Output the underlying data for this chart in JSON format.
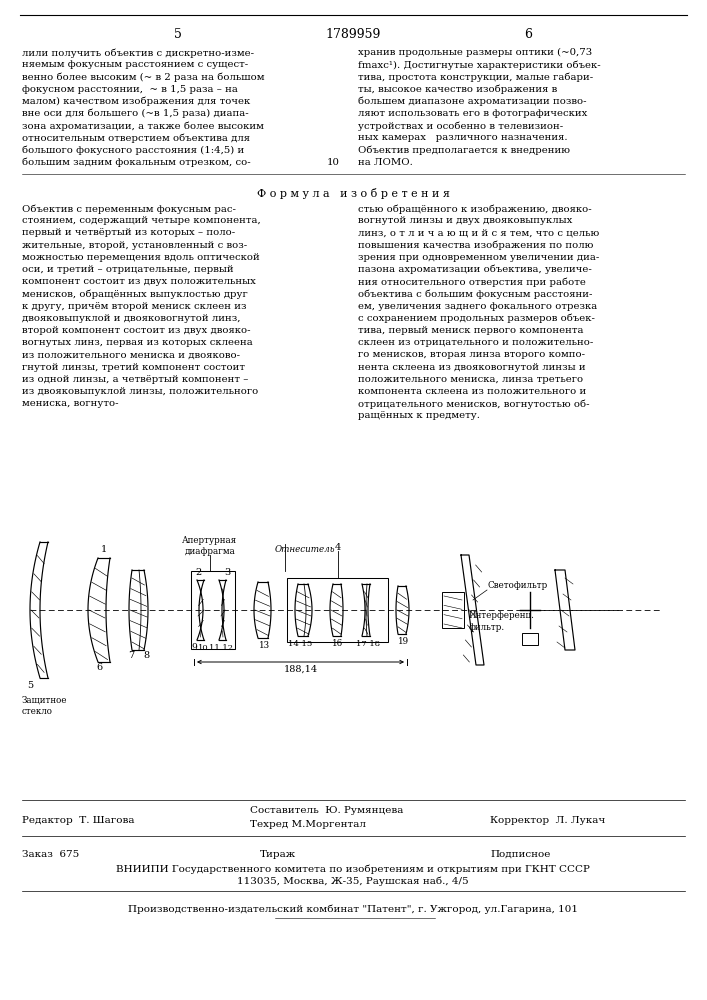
{
  "page_number_left": "5",
  "patent_number": "1789959",
  "page_number_right": "6",
  "background_color": "#ffffff",
  "text_color": "#000000",
  "left_column_text": "лили получить объектив с дискретно-изме-\nняемым фокусным расстоянием с сущест-\nвенно более высоким (~ в 2 раза на большом\nфокусном расстоянии,  ~ в 1,5 раза – на\nмалом) качеством изображения для точек\nвне оси для большего (~в 1,5 раза) диапа-\nзона ахроматизации, а также более высоким\nотносительным отверстием объектива для\nбольшого фокусного расстояния (1:4,5) и\nбольшим задним фокальным отрезком, со-",
  "right_column_text": "хранив продольные размеры оптики (~0,73\nfmaxc¹). Достигнутые характеристики объек-\nтива, простота конструкции, малые габари-\nты, высокое качество изображения в\nбольшем диапазоне ахроматизации позво-\nляют использовать его в фотографических\nустройствах и особенно в телевизион-\nных камерах   различного назначения.\nОбъектив предполагается к внедрению\nна ЛОМО.",
  "formula_title": "Ф о р м у л а   и з о б р е т е н и я",
  "left_formula_text": "Объектив с переменным фокусным рас-\nстоянием, содержащий четыре компонента,\nпервый и четвёртый из которых – поло-\nжительные, второй, установленный с воз-\nможностью перемещения вдоль оптической\nоси, и третий – отрицательные, первый\nкомпонент состоит из двух положительных\nменисков, обращённых выпуклостью друг\nк другу, причём второй мениск склеен из\nдвояковыпуклой и двояковогнутой линз,\nвторой компонент состоит из двух двояко-\nвогнутых линз, первая из которых склеена\nиз положительного мениска и двояково-\nгнутой линзы, третий компонент состоит\nиз одной линзы, а четвёртый компонент –\nиз двояковыпуклой линзы, положительного\nмениска, вогнуто-",
  "right_formula_text": "стью обращённого к изображению, двояко-\nвогнутой линзы и двух двояковыпуклых\nлинз, о т л и ч а ю щ и й с я тем, что с целью\nповышения качества изображения по полю\nзрения при одновременном увеличении диа-\nпазона ахроматизации объектива, увеличе-\nния относительного отверстия при работе\nобъектива с большим фокусным расстояни-\nем, увеличения заднего фокального отрезка\nс сохранением продольных размеров объек-\nтива, первый мениск первого компонента\nсклеен из отрицательного и положительно-\nго менисков, вторая линза второго компо-\nнента склеена из двояковогнутой линзы и\nположительного мениска, линза третьего\nкомпонента склеена из положительного и\nотрицательного менисков, вогнутостью об-\nращённых к предмету.",
  "footer_editor": "Редактор  Т. Шагова",
  "footer_compiler": "Составитель  Ю. Румянцева",
  "footer_techred": "Техред М.Моргентал",
  "footer_corrector": "Корректор  Л. Лукач",
  "footer_order": "Заказ  675",
  "footer_circulation": "Тираж",
  "footer_subscription": "Подписное",
  "footer_vniip": "ВНИИПИ Государственного комитета по изобретениям и открытиям при ГКНТ СССР",
  "footer_address": "113035, Москва, Ж-35, Раушская наб., 4/5",
  "footer_plant": "Производственно-издательский комбинат \"Патент\", г. Ужгород, ул.Гагарина, 101"
}
